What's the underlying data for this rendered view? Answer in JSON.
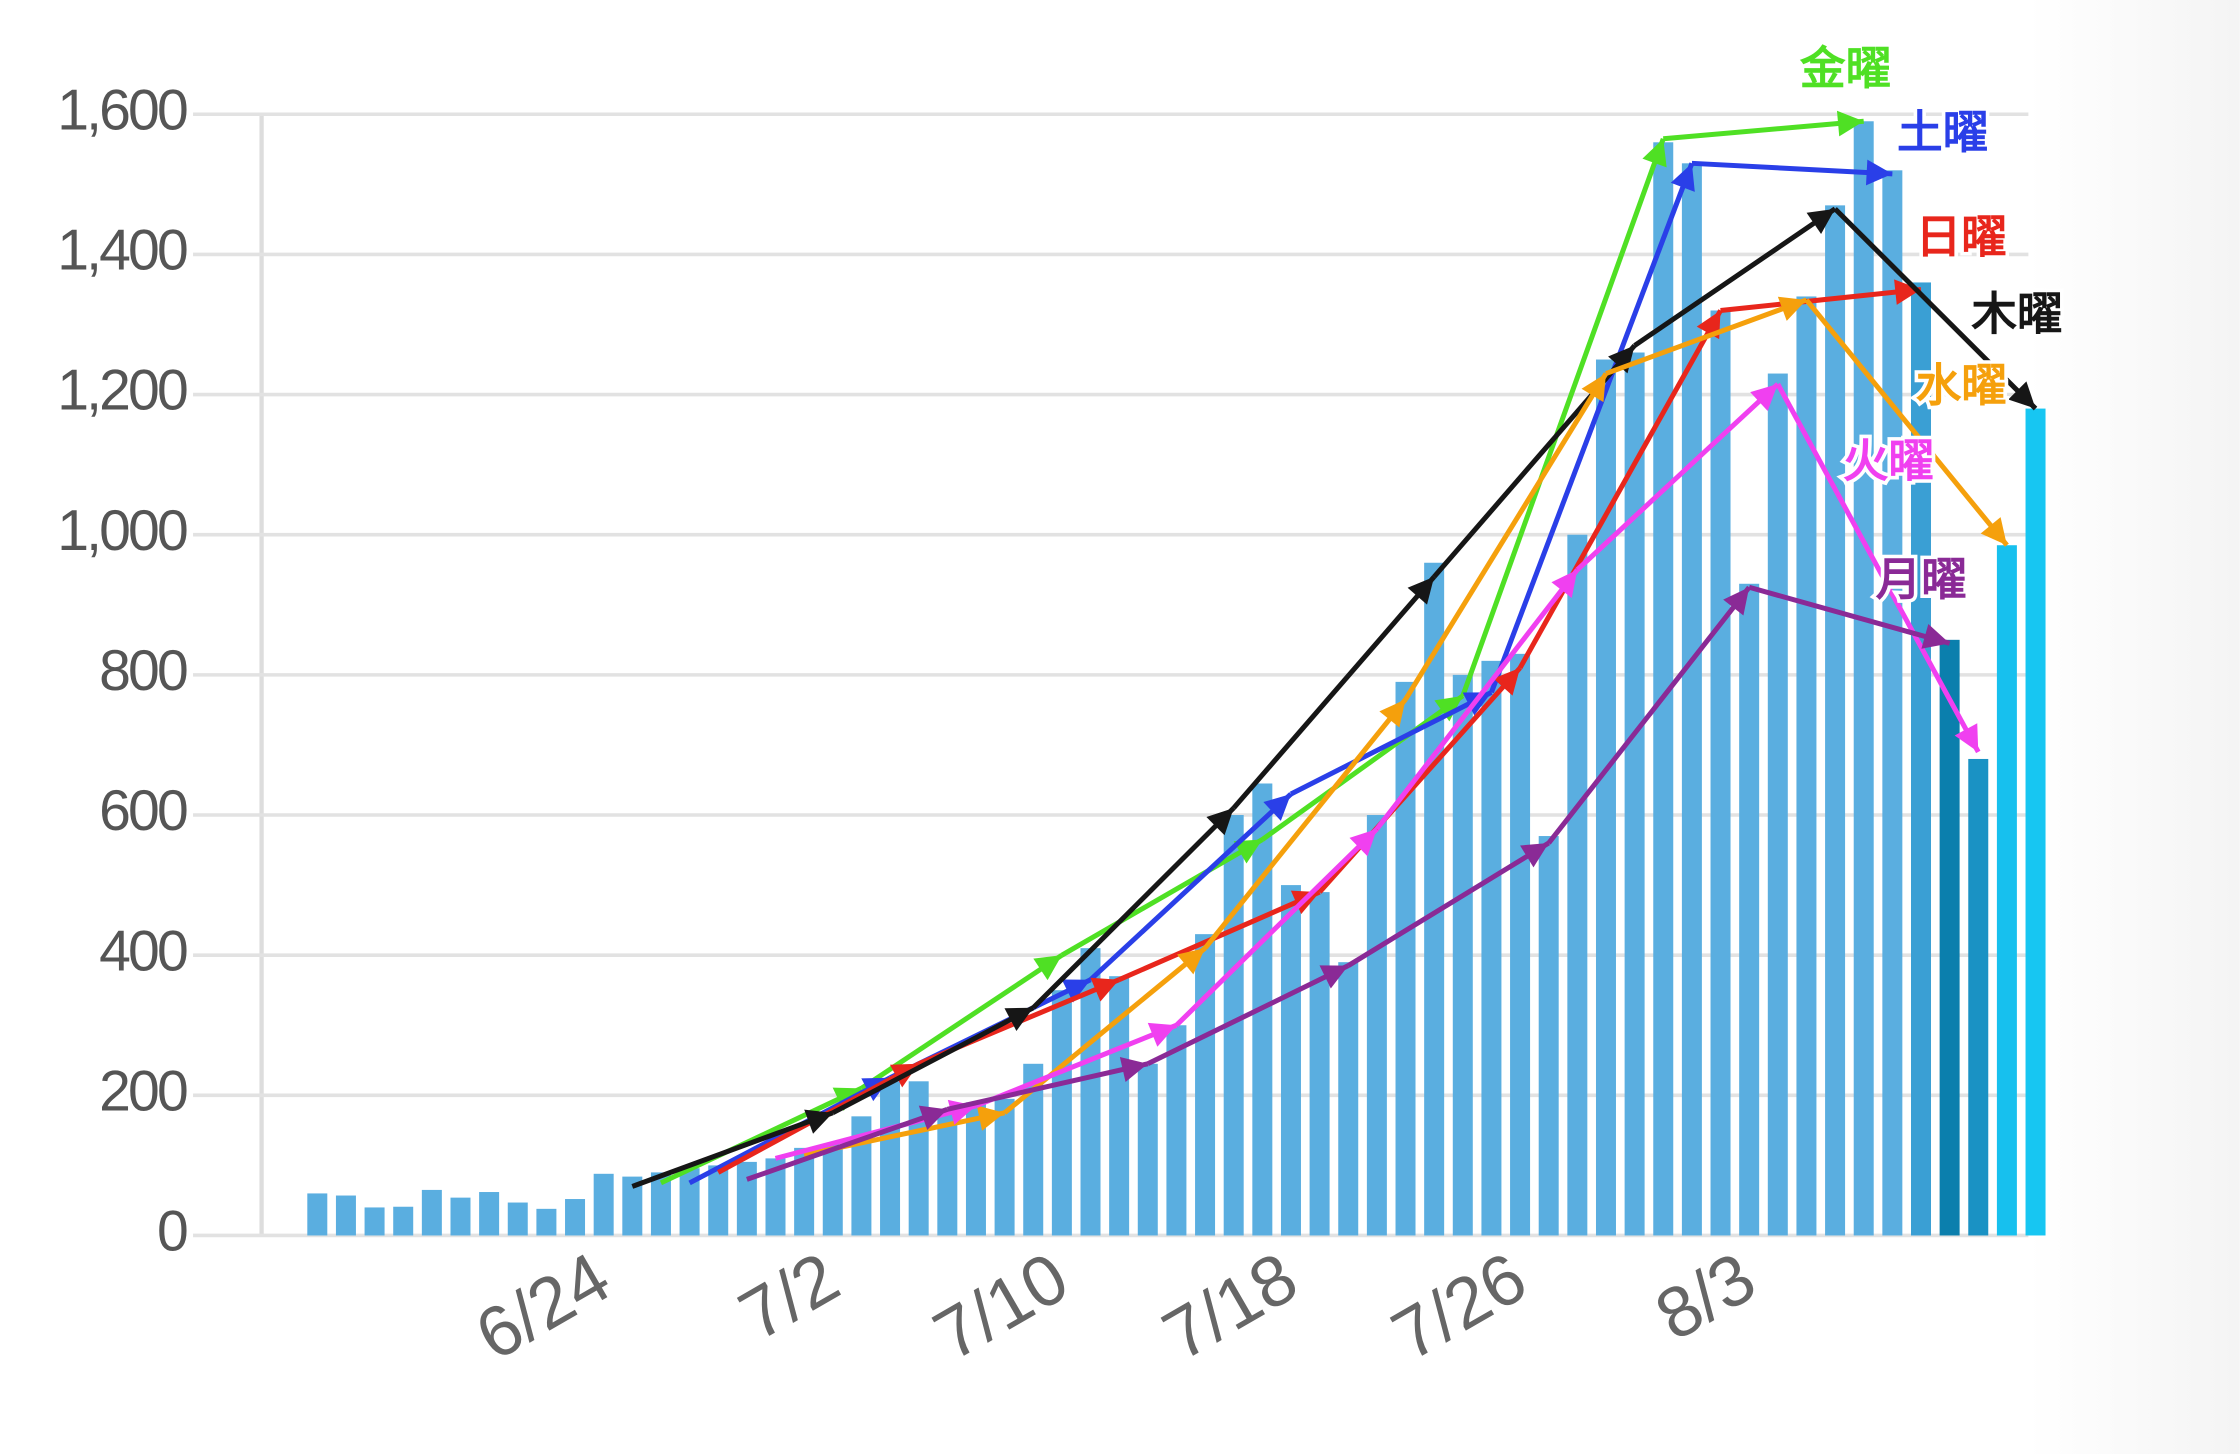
{
  "chart_data": {
    "type": "bar",
    "categories": [
      null,
      null,
      null,
      null,
      null,
      null,
      null,
      null,
      null,
      null,
      "6/24",
      null,
      null,
      null,
      null,
      null,
      null,
      null,
      "7/2",
      null,
      null,
      null,
      null,
      null,
      null,
      null,
      "7/10",
      null,
      null,
      null,
      null,
      null,
      null,
      null,
      "7/18",
      null,
      null,
      null,
      null,
      null,
      null,
      null,
      "7/26",
      null,
      null,
      null,
      null,
      null,
      null,
      null,
      "8/3",
      null,
      null,
      null,
      null,
      null,
      null,
      null,
      null,
      null,
      null
    ],
    "values": [
      60,
      57,
      40,
      41,
      65,
      54,
      62,
      47,
      38,
      52,
      88,
      84,
      90,
      96,
      100,
      105,
      110,
      125,
      130,
      170,
      220,
      220,
      180,
      190,
      195,
      245,
      350,
      410,
      370,
      245,
      300,
      430,
      600,
      645,
      500,
      490,
      390,
      600,
      790,
      960,
      800,
      820,
      830,
      570,
      1000,
      1250,
      1260,
      1560,
      1530,
      1320,
      930,
      1230,
      1340,
      1470,
      1590,
      1520,
      1360,
      850,
      680,
      985,
      1180
    ],
    "color": "#5aaee0",
    "recent_colors": [
      "#3a9fd4",
      "#0b7fad",
      "#1a92c4",
      "#17c0ee",
      "#17c6f2"
    ],
    "ylim": [
      0,
      1600
    ],
    "yticks": [
      0,
      200,
      400,
      600,
      800,
      {
        "value": 1000,
        "label": "1,000"
      },
      {
        "value": 1200,
        "label": "1,200"
      },
      {
        "value": 1400,
        "label": "1,400"
      },
      {
        "value": 1600,
        "label": "1,600"
      }
    ],
    "grid": true,
    "series": [
      {
        "name": "金曜",
        "color": "#4fe024",
        "values": [
          null,
          null,
          null,
          null,
          null,
          null,
          null,
          null,
          null,
          null,
          null,
          null,
          75,
          null,
          null,
          null,
          null,
          null,
          null,
          210,
          null,
          null,
          null,
          null,
          null,
          null,
          400,
          null,
          null,
          null,
          null,
          null,
          null,
          565,
          null,
          null,
          null,
          null,
          null,
          null,
          770,
          null,
          null,
          null,
          null,
          null,
          null,
          1565,
          null,
          null,
          null,
          null,
          null,
          null,
          1590,
          null,
          null,
          null,
          null,
          null,
          null
        ]
      },
      {
        "name": "土曜",
        "color": "#2a3fe8",
        "values": [
          null,
          null,
          null,
          null,
          null,
          null,
          null,
          null,
          null,
          null,
          null,
          null,
          null,
          75,
          null,
          null,
          null,
          null,
          null,
          null,
          225,
          null,
          null,
          null,
          null,
          null,
          null,
          365,
          null,
          null,
          null,
          null,
          null,
          null,
          630,
          null,
          null,
          null,
          null,
          null,
          null,
          775,
          null,
          null,
          null,
          null,
          null,
          null,
          1530,
          null,
          null,
          null,
          null,
          null,
          null,
          1515,
          null,
          null,
          null,
          null,
          null
        ]
      },
      {
        "name": "日曜",
        "color": "#e8261c",
        "values": [
          null,
          null,
          null,
          null,
          null,
          null,
          null,
          null,
          null,
          null,
          null,
          null,
          null,
          null,
          90,
          null,
          null,
          null,
          null,
          null,
          null,
          245,
          null,
          null,
          null,
          null,
          null,
          null,
          365,
          null,
          null,
          null,
          null,
          null,
          null,
          490,
          null,
          null,
          null,
          null,
          null,
          null,
          810,
          null,
          null,
          null,
          null,
          null,
          null,
          1320,
          null,
          null,
          null,
          null,
          null,
          null,
          1350,
          null,
          null,
          null,
          null
        ]
      },
      {
        "name": "木曜",
        "color": "#161616",
        "values": [
          null,
          null,
          null,
          null,
          null,
          null,
          null,
          null,
          null,
          null,
          null,
          70,
          null,
          null,
          null,
          null,
          null,
          null,
          175,
          null,
          null,
          null,
          null,
          null,
          null,
          325,
          null,
          null,
          null,
          null,
          null,
          null,
          610,
          null,
          null,
          null,
          null,
          null,
          null,
          940,
          null,
          null,
          null,
          null,
          null,
          null,
          1270,
          null,
          null,
          null,
          null,
          null,
          null,
          1465,
          null,
          null,
          null,
          null,
          null,
          null,
          1180
        ]
      },
      {
        "name": "水曜",
        "color": "#f5a00c",
        "values": [
          null,
          null,
          null,
          null,
          null,
          null,
          null,
          null,
          null,
          null,
          null,
          null,
          null,
          null,
          null,
          null,
          null,
          115,
          null,
          null,
          null,
          null,
          null,
          null,
          175,
          null,
          null,
          null,
          null,
          null,
          null,
          410,
          null,
          null,
          null,
          null,
          null,
          null,
          765,
          null,
          null,
          null,
          null,
          null,
          null,
          1230,
          null,
          null,
          null,
          null,
          null,
          null,
          1335,
          null,
          null,
          null,
          null,
          null,
          null,
          985,
          null
        ]
      },
      {
        "name": "火曜",
        "color": "#f040f0",
        "values": [
          null,
          null,
          null,
          null,
          null,
          null,
          null,
          null,
          null,
          null,
          null,
          null,
          null,
          null,
          null,
          null,
          110,
          null,
          null,
          null,
          null,
          null,
          null,
          185,
          null,
          null,
          null,
          null,
          null,
          null,
          300,
          null,
          null,
          null,
          null,
          null,
          null,
          580,
          null,
          null,
          null,
          null,
          null,
          null,
          950,
          null,
          null,
          null,
          null,
          null,
          null,
          1215,
          null,
          null,
          null,
          null,
          null,
          null,
          690,
          null,
          null
        ]
      },
      {
        "name": "月曜",
        "color": "#8a2a96",
        "values": [
          null,
          null,
          null,
          null,
          null,
          null,
          null,
          null,
          null,
          null,
          null,
          null,
          null,
          null,
          null,
          80,
          null,
          null,
          null,
          null,
          null,
          null,
          180,
          null,
          null,
          null,
          null,
          null,
          null,
          245,
          null,
          null,
          null,
          null,
          null,
          null,
          385,
          null,
          null,
          null,
          null,
          null,
          null,
          560,
          null,
          null,
          null,
          null,
          null,
          null,
          925,
          null,
          null,
          null,
          null,
          null,
          null,
          845,
          null,
          null,
          null
        ]
      }
    ]
  }
}
